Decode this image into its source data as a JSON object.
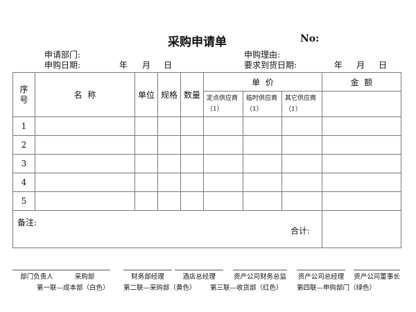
{
  "title": "采购申请单",
  "no_label": "No:",
  "fields": {
    "dept": "申请部门:",
    "reason": "申购理由:",
    "apply_date": "申购日期:",
    "required_date": "要求到货日期:",
    "year": "年",
    "month": "月",
    "day": "日"
  },
  "table": {
    "headers": {
      "seq": "序号",
      "name": "名  称",
      "unit": "单位",
      "spec": "规格",
      "qty": "数量",
      "price": "单  价",
      "amount": "金  额",
      "suppliers": [
        "定点供应商 （1）",
        "临时供应商 （1）",
        "其它供应商 （1）"
      ]
    },
    "rows": [
      "1",
      "2",
      "3",
      "4",
      "5"
    ],
    "remark": "备注:",
    "total": "合计:"
  },
  "signatures": [
    "部门负责人",
    "采购部",
    "财务部经理",
    "酒店总经理",
    "资产公司财务总监",
    "资产公司总经理",
    "资产公司董事长"
  ],
  "copies": [
    "第一联—成本部（白色）",
    "第二联—采购部（黄色）",
    "第三联—收货部（红色）",
    "第四联—申购部门（绿色）"
  ]
}
